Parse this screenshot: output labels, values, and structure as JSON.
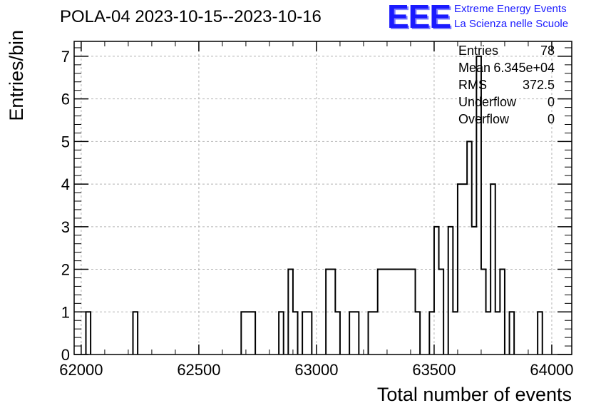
{
  "title": "POLA-04 2023-10-15--2023-10-16",
  "logo": {
    "mark": "EEE",
    "line1": "Extreme Energy Events",
    "line2": "La Scienza nelle Scuole"
  },
  "stats": [
    {
      "label": "Entries",
      "value": "78"
    },
    {
      "label": "Mean",
      "value": "6.345e+04"
    },
    {
      "label": "RMS",
      "value": "372.5"
    },
    {
      "label": "Underflow",
      "value": "0"
    },
    {
      "label": "Overflow",
      "value": "0"
    }
  ],
  "chart_data": {
    "type": "histogram",
    "xlabel": "Total number of events",
    "ylabel": "Entries/bin",
    "xlim": [
      61970,
      64085
    ],
    "ylim": [
      0,
      7.35
    ],
    "xticks": [
      62000,
      62500,
      63000,
      63500,
      64000
    ],
    "yticks": [
      0,
      1,
      2,
      3,
      4,
      5,
      6,
      7
    ],
    "grid": true,
    "line_color": "#000000",
    "bins": [
      {
        "x0": 62020,
        "x1": 62040,
        "count": 1
      },
      {
        "x0": 62220,
        "x1": 62240,
        "count": 1
      },
      {
        "x0": 62680,
        "x1": 62740,
        "count": 1
      },
      {
        "x0": 62840,
        "x1": 62860,
        "count": 1
      },
      {
        "x0": 62880,
        "x1": 62900,
        "count": 2
      },
      {
        "x0": 62900,
        "x1": 62920,
        "count": 1
      },
      {
        "x0": 62940,
        "x1": 62980,
        "count": 1
      },
      {
        "x0": 63040,
        "x1": 63080,
        "count": 2
      },
      {
        "x0": 63080,
        "x1": 63100,
        "count": 1
      },
      {
        "x0": 63140,
        "x1": 63180,
        "count": 1
      },
      {
        "x0": 63220,
        "x1": 63260,
        "count": 1
      },
      {
        "x0": 63260,
        "x1": 63420,
        "count": 2
      },
      {
        "x0": 63420,
        "x1": 63440,
        "count": 1
      },
      {
        "x0": 63480,
        "x1": 63500,
        "count": 1
      },
      {
        "x0": 63500,
        "x1": 63520,
        "count": 3
      },
      {
        "x0": 63520,
        "x1": 63540,
        "count": 2
      },
      {
        "x0": 63560,
        "x1": 63580,
        "count": 3
      },
      {
        "x0": 63580,
        "x1": 63600,
        "count": 1
      },
      {
        "x0": 63600,
        "x1": 63640,
        "count": 4
      },
      {
        "x0": 63640,
        "x1": 63660,
        "count": 5
      },
      {
        "x0": 63660,
        "x1": 63680,
        "count": 3
      },
      {
        "x0": 63680,
        "x1": 63700,
        "count": 7
      },
      {
        "x0": 63700,
        "x1": 63720,
        "count": 2
      },
      {
        "x0": 63720,
        "x1": 63740,
        "count": 1
      },
      {
        "x0": 63740,
        "x1": 63760,
        "count": 4
      },
      {
        "x0": 63760,
        "x1": 63780,
        "count": 1
      },
      {
        "x0": 63780,
        "x1": 63800,
        "count": 2
      },
      {
        "x0": 63820,
        "x1": 63840,
        "count": 1
      },
      {
        "x0": 63940,
        "x1": 63960,
        "count": 1
      }
    ]
  }
}
